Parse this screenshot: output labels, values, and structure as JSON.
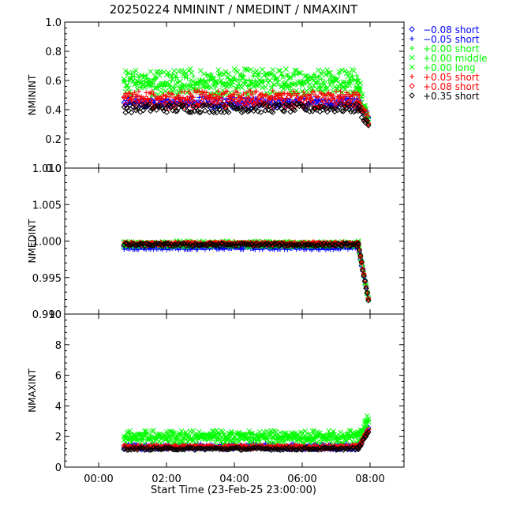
{
  "chart_data": {
    "title": "20250224 NMININT / NMEDINT / NMAXINT",
    "xlabel": "Start Time (23-Feb-25 23:00:00)",
    "x_ticks": [
      "00:00",
      "02:00",
      "04:00",
      "06:00",
      "08:00"
    ],
    "x_tick_hours": [
      0,
      2,
      4,
      6,
      8
    ],
    "x_range_hours": [
      -1.0,
      9.0
    ],
    "legend": [
      {
        "label": "−0.08 short",
        "marker": "diamond",
        "color": "#0000ff"
      },
      {
        "label": "−0.05 short",
        "marker": "plus",
        "color": "#0000ff"
      },
      {
        "label": "+0.00 short",
        "marker": "plus",
        "color": "#00ff00"
      },
      {
        "label": "+0.00 middle",
        "marker": "cross",
        "color": "#00ff00"
      },
      {
        "label": "+0.00 long",
        "marker": "cross",
        "color": "#00ff00"
      },
      {
        "label": "+0.05 short",
        "marker": "plus",
        "color": "#ff0000"
      },
      {
        "label": "+0.08 short",
        "marker": "diamond",
        "color": "#ff0000"
      },
      {
        "label": "+0.35 short",
        "marker": "diamond",
        "color": "#000000"
      }
    ],
    "panels": [
      {
        "type": "scatter",
        "ylabel": "NMININT",
        "ylim": [
          0.0,
          1.0
        ],
        "yticks": [
          "0.0",
          "0.2",
          "0.4",
          "0.6",
          "0.8",
          "1.0"
        ],
        "ytick_values": [
          0.0,
          0.2,
          0.4,
          0.6,
          0.8,
          1.0
        ],
        "series": [
          {
            "name": "−0.08 short",
            "marker": "diamond",
            "color": "#0000ff",
            "x_start": 0.75,
            "x_end": 7.9,
            "level": 0.44,
            "spread": 0.03,
            "tail": 0.35
          },
          {
            "name": "−0.05 short",
            "marker": "plus",
            "color": "#0000ff",
            "x_start": 0.75,
            "x_end": 7.9,
            "level": 0.46,
            "spread": 0.03,
            "tail": 0.35
          },
          {
            "name": "+0.00 short",
            "marker": "plus",
            "color": "#00ff00",
            "x_start": 0.75,
            "x_end": 7.9,
            "level": 0.6,
            "spread": 0.05,
            "tail": 0.3
          },
          {
            "name": "+0.00 middle",
            "marker": "cross",
            "color": "#00ff00",
            "x_start": 0.75,
            "x_end": 7.9,
            "level": 0.62,
            "spread": 0.06,
            "tail": 0.3
          },
          {
            "name": "+0.00 long",
            "marker": "cross",
            "color": "#00ff00",
            "x_start": 0.75,
            "x_end": 7.9,
            "level": 0.55,
            "spread": 0.05,
            "tail": 0.3
          },
          {
            "name": "+0.05 short",
            "marker": "plus",
            "color": "#ff0000",
            "x_start": 0.75,
            "x_end": 7.9,
            "level": 0.5,
            "spread": 0.03,
            "tail": 0.32
          },
          {
            "name": "+0.08 short",
            "marker": "diamond",
            "color": "#ff0000",
            "x_start": 0.75,
            "x_end": 7.9,
            "level": 0.45,
            "spread": 0.04,
            "tail": 0.32
          },
          {
            "name": "+0.35 short",
            "marker": "diamond",
            "color": "#000000",
            "x_start": 0.75,
            "x_end": 7.9,
            "level": 0.41,
            "spread": 0.03,
            "tail": 0.3
          }
        ]
      },
      {
        "type": "scatter",
        "ylabel": "NMEDINT",
        "ylim": [
          0.99,
          1.01
        ],
        "yticks": [
          "0.990",
          "0.995",
          "1.000",
          "1.005",
          "1.010"
        ],
        "ytick_values": [
          0.99,
          0.995,
          1.0,
          1.005,
          1.01
        ],
        "series": [
          {
            "name": "−0.08 short",
            "marker": "diamond",
            "color": "#0000ff",
            "x_start": 0.75,
            "x_end": 7.9,
            "level": 0.9993,
            "spread": 0.0002,
            "tail": 0.992
          },
          {
            "name": "−0.05 short",
            "marker": "plus",
            "color": "#0000ff",
            "x_start": 0.75,
            "x_end": 7.9,
            "level": 0.999,
            "spread": 0.0002,
            "tail": 0.992
          },
          {
            "name": "+0.00 short",
            "marker": "plus",
            "color": "#00ff00",
            "x_start": 0.75,
            "x_end": 7.9,
            "level": 0.9996,
            "spread": 0.0003,
            "tail": 0.992
          },
          {
            "name": "+0.00 middle",
            "marker": "cross",
            "color": "#00ff00",
            "x_start": 0.75,
            "x_end": 7.9,
            "level": 0.9997,
            "spread": 0.0003,
            "tail": 0.992
          },
          {
            "name": "+0.00 long",
            "marker": "cross",
            "color": "#00ff00",
            "x_start": 0.75,
            "x_end": 7.9,
            "level": 0.9995,
            "spread": 0.0003,
            "tail": 0.992
          },
          {
            "name": "+0.05 short",
            "marker": "plus",
            "color": "#ff0000",
            "x_start": 0.75,
            "x_end": 7.9,
            "level": 0.9997,
            "spread": 0.0002,
            "tail": 0.992
          },
          {
            "name": "+0.08 short",
            "marker": "diamond",
            "color": "#ff0000",
            "x_start": 0.75,
            "x_end": 7.9,
            "level": 0.9996,
            "spread": 0.0002,
            "tail": 0.992
          },
          {
            "name": "+0.35 short",
            "marker": "diamond",
            "color": "#000000",
            "x_start": 0.75,
            "x_end": 7.9,
            "level": 0.9995,
            "spread": 0.0002,
            "tail": 0.992
          }
        ]
      },
      {
        "type": "scatter",
        "ylabel": "NMAXINT",
        "ylim": [
          0,
          10
        ],
        "yticks": [
          "0",
          "2",
          "4",
          "6",
          "8",
          "10"
        ],
        "ytick_values": [
          0,
          2,
          4,
          6,
          8,
          10
        ],
        "series": [
          {
            "name": "−0.08 short",
            "marker": "diamond",
            "color": "#0000ff",
            "x_start": 0.75,
            "x_end": 7.9,
            "level": 1.25,
            "spread": 0.1,
            "tail": 2.5
          },
          {
            "name": "−0.05 short",
            "marker": "plus",
            "color": "#0000ff",
            "x_start": 0.75,
            "x_end": 7.9,
            "level": 1.4,
            "spread": 0.15,
            "tail": 2.5
          },
          {
            "name": "+0.00 short",
            "marker": "plus",
            "color": "#00ff00",
            "x_start": 0.75,
            "x_end": 7.9,
            "level": 2.0,
            "spread": 0.25,
            "tail": 3.0
          },
          {
            "name": "+0.00 middle",
            "marker": "cross",
            "color": "#00ff00",
            "x_start": 0.75,
            "x_end": 7.9,
            "level": 2.1,
            "spread": 0.3,
            "tail": 3.2
          },
          {
            "name": "+0.00 long",
            "marker": "cross",
            "color": "#00ff00",
            "x_start": 0.75,
            "x_end": 7.9,
            "level": 1.8,
            "spread": 0.3,
            "tail": 3.0
          },
          {
            "name": "+0.05 short",
            "marker": "plus",
            "color": "#ff0000",
            "x_start": 0.75,
            "x_end": 7.9,
            "level": 1.35,
            "spread": 0.1,
            "tail": 2.4
          },
          {
            "name": "+0.08 short",
            "marker": "diamond",
            "color": "#ff0000",
            "x_start": 0.75,
            "x_end": 7.9,
            "level": 1.3,
            "spread": 0.1,
            "tail": 2.4
          },
          {
            "name": "+0.35 short",
            "marker": "diamond",
            "color": "#000000",
            "x_start": 0.75,
            "x_end": 7.9,
            "level": 1.2,
            "spread": 0.08,
            "tail": 2.3
          }
        ]
      }
    ]
  }
}
